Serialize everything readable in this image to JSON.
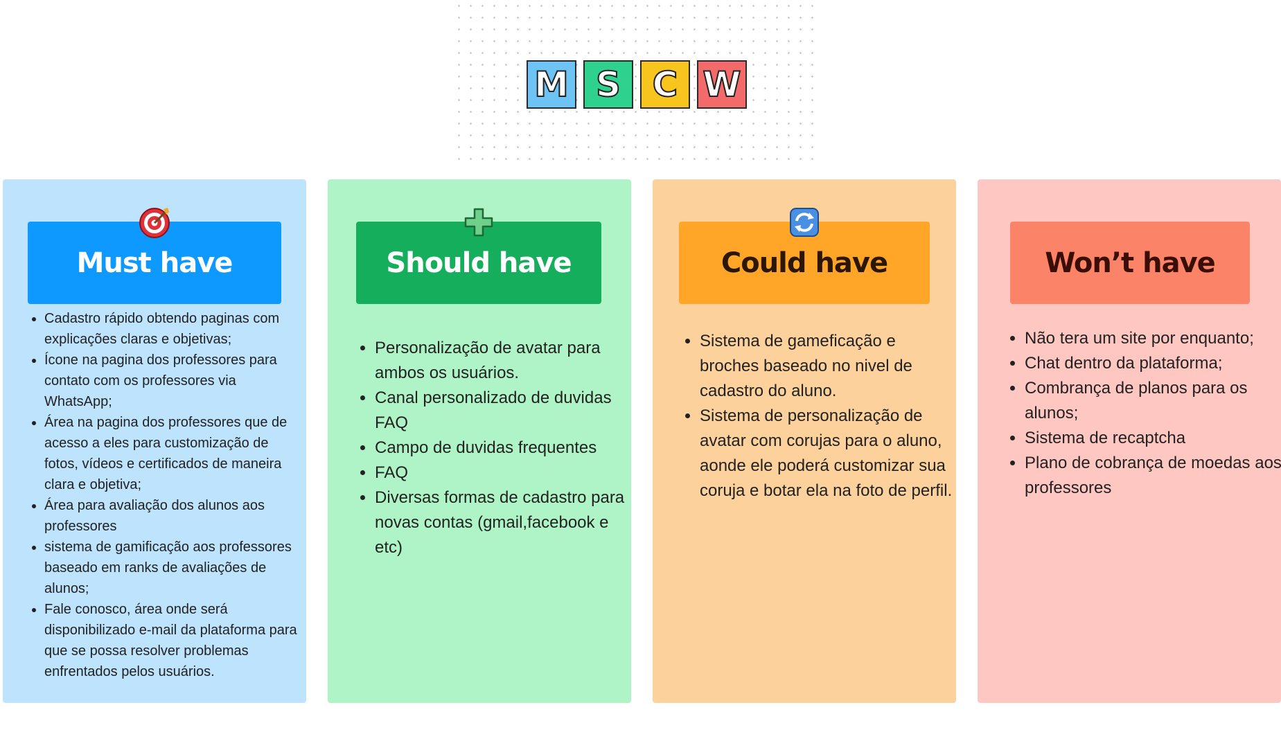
{
  "tiles": [
    {
      "letter": "M",
      "color": "#6ec3f5"
    },
    {
      "letter": "S",
      "color": "#2fd18e"
    },
    {
      "letter": "C",
      "color": "#f7c51d"
    },
    {
      "letter": "W",
      "color": "#f26a6a"
    }
  ],
  "columns": [
    {
      "title": "Must have",
      "icon": "target-icon",
      "bg": "#bde3fd",
      "header_bg": "#0d99ff",
      "header_fg": "#ffffff",
      "items": [
        "Cadastro rápido obtendo paginas com explicações claras e objetivas;",
        "Ícone na pagina dos professores para contato com os professores via WhatsApp;",
        "Área na pagina dos professores que de acesso a eles para customização de fotos, vídeos e certificados de maneira clara e objetiva;",
        "Área para avaliação dos alunos aos professores",
        "sistema de gamificação aos professores baseado em ranks de avaliações de alunos;",
        "Fale conosco, área onde será disponibilizado e-mail da plataforma para que se possa resolver problemas enfrentados pelos usuários."
      ]
    },
    {
      "title": "Should have",
      "icon": "plus-icon",
      "bg": "#aff4c6",
      "header_bg": "#14ae5c",
      "header_fg": "#ffffff",
      "items": [
        "Personalização de avatar para ambos os usuários.",
        "Canal personalizado de duvidas FAQ",
        "Campo de duvidas frequentes",
        "FAQ",
        "Diversas formas de cadastro para novas contas (gmail,facebook e etc)"
      ]
    },
    {
      "title": "Could have",
      "icon": "refresh-icon",
      "bg": "#fcd19c",
      "header_bg": "#ffa629",
      "header_fg": "#2b1600",
      "items": [
        "Sistema de gameficação e broches baseado no nivel de cadastro do aluno.",
        "Sistema de personalização de avatar com corujas para o aluno, aonde ele poderá customizar sua coruja e botar ela na foto de perfil."
      ]
    },
    {
      "title": "Won’t have",
      "icon": "",
      "bg": "#ffc7c2",
      "header_bg": "#fa8368",
      "header_fg": "#3a0e05",
      "items": [
        "Não tera um site por enquanto;",
        "Chat dentro da plataforma;",
        "Combrança de planos para os alunos;",
        "Sistema de recaptcha",
        "Plano de cobrança de moedas aos professores"
      ]
    }
  ]
}
